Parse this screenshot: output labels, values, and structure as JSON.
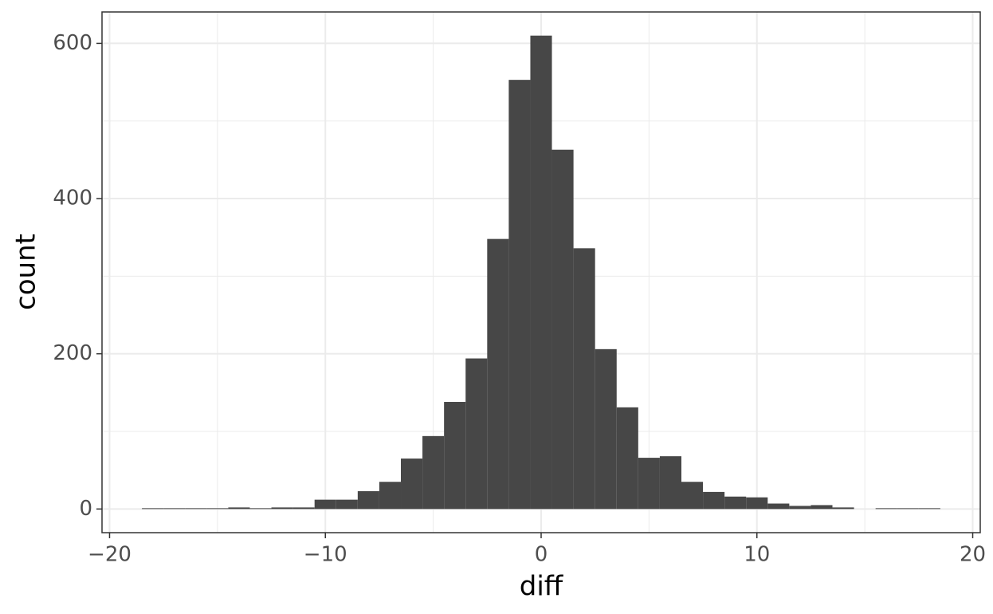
{
  "chart_data": {
    "type": "histogram",
    "x_label": "diff",
    "y_label": "count",
    "bins": [
      -18.5,
      -17.5,
      -16.5,
      -15.5,
      -14.5,
      -13.5,
      -12.5,
      -11.5,
      -10.5,
      -9.5,
      -8.5,
      -7.5,
      -6.5,
      -5.5,
      -4.5,
      -3.5,
      -2.5,
      -1.5,
      -0.5,
      0.5,
      1.5,
      2.5,
      3.5,
      4.5,
      5.5,
      6.5,
      7.5,
      8.5,
      9.5,
      10.5,
      11.5,
      12.5,
      13.5,
      14.5,
      15.5,
      16.5,
      17.5,
      18.5
    ],
    "values": [
      1,
      1,
      1,
      1,
      2,
      1,
      2,
      2,
      12,
      12,
      23,
      35,
      65,
      94,
      138,
      194,
      348,
      553,
      610,
      463,
      336,
      206,
      131,
      66,
      68,
      35,
      22,
      16,
      15,
      7,
      4,
      5,
      2,
      0,
      1,
      1,
      1
    ],
    "color": "#474747",
    "xlim": [
      -20.35,
      20.35
    ],
    "xticks": [
      {
        "value": -20,
        "label": "−20"
      },
      {
        "value": -10,
        "label": "−10"
      },
      0,
      10,
      20
    ],
    "x_minor_grid": [
      -15,
      -5,
      5,
      15
    ],
    "ylim": [
      -30.5,
      640.5
    ],
    "yticks": [
      0,
      200,
      400,
      600
    ],
    "y_minor_grid": [
      100,
      300,
      500
    ],
    "grid": true
  }
}
